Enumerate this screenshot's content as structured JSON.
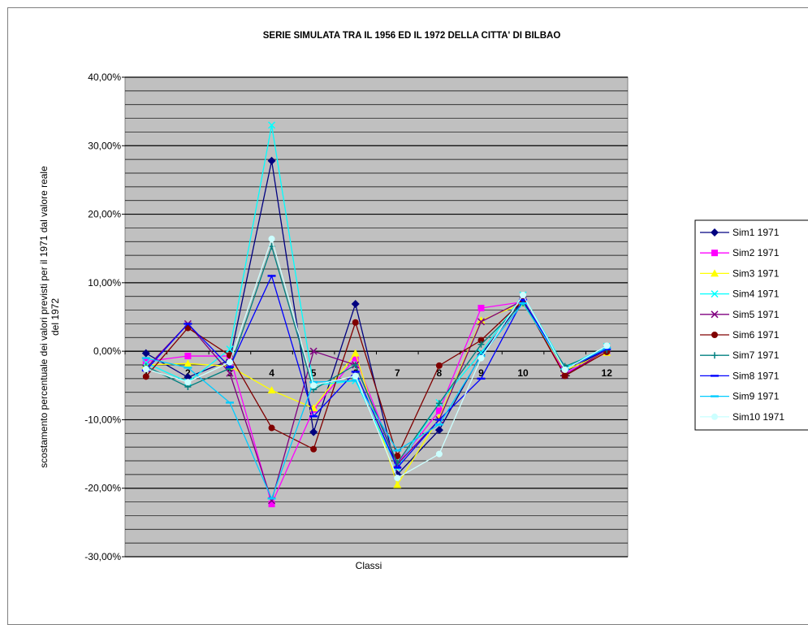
{
  "chart_data": {
    "type": "line",
    "title": "SERIE SIMULATA TRA IL 1956 ED IL 1972 DELLA CITTA' DI BILBAO",
    "xlabel": "Classi",
    "ylabel": "scostamento percentuale dei valori previsti per il 1971 dal valore reale del 1972",
    "ylim": [
      -30,
      40
    ],
    "ytick_step": 10,
    "ytick_labels": [
      "40,00%",
      "30,00%",
      "20,00%",
      "10,00%",
      "0,00%",
      "-10,00%",
      "-20,00%",
      "-30,00%"
    ],
    "categories": [
      "1",
      "2",
      "3",
      "4",
      "5",
      "6",
      "7",
      "8",
      "9",
      "10",
      "11",
      "12"
    ],
    "grid": true,
    "legend_position": "right",
    "plot_background": "#c0c0c0",
    "series": [
      {
        "name": "Sim1 1971",
        "color": "#000080",
        "marker": "diamond",
        "values": [
          -0.3,
          -3.8,
          -1.3,
          27.8,
          -11.8,
          6.9,
          -18.0,
          -11.5,
          -0.5,
          7.5,
          -3.0,
          0.3
        ]
      },
      {
        "name": "Sim2 1971",
        "color": "#ff00ff",
        "marker": "square",
        "values": [
          -1.5,
          -0.7,
          -0.7,
          -22.3,
          -8.5,
          -1.0,
          -16.5,
          -8.7,
          6.3,
          7.2,
          -3.2,
          -0.2
        ]
      },
      {
        "name": "Sim3 1971",
        "color": "#ffff00",
        "marker": "triangle",
        "values": [
          -2.0,
          -1.8,
          -2.2,
          -5.7,
          -8.3,
          -0.3,
          -19.5,
          -9.7,
          4.5,
          7.0,
          -2.8,
          -0.2
        ]
      },
      {
        "name": "Sim4 1971",
        "color": "#00ffff",
        "marker": "x",
        "values": [
          -1.7,
          -4.5,
          0.3,
          33.0,
          -5.0,
          -4.3,
          -17.0,
          -7.5,
          -0.2,
          8.2,
          -2.4,
          0.7
        ]
      },
      {
        "name": "Sim5 1971",
        "color": "#800080",
        "marker": "x",
        "values": [
          -2.5,
          4.0,
          -3.2,
          -21.8,
          0.0,
          -2.0,
          -16.5,
          -10.0,
          4.3,
          7.4,
          -3.5,
          0.2
        ]
      },
      {
        "name": "Sim6 1971",
        "color": "#800000",
        "marker": "circle",
        "values": [
          -3.7,
          3.4,
          -0.6,
          -11.2,
          -14.3,
          4.2,
          -15.3,
          -2.1,
          1.6,
          7.4,
          -3.6,
          -0.1
        ]
      },
      {
        "name": "Sim7 1971",
        "color": "#008080",
        "marker": "plus",
        "values": [
          -2.2,
          -5.2,
          -2.5,
          15.3,
          -5.6,
          -2.0,
          -16.3,
          -7.6,
          1.0,
          7.0,
          -2.2,
          0.2
        ]
      },
      {
        "name": "Sim8 1971",
        "color": "#0000ff",
        "marker": "dash",
        "values": [
          -2.8,
          4.0,
          -2.3,
          11.0,
          -9.5,
          -3.0,
          -17.0,
          -10.0,
          -4.0,
          7.5,
          -2.6,
          0.3
        ]
      },
      {
        "name": "Sim9 1971",
        "color": "#00ccff",
        "marker": "dash",
        "values": [
          -1.0,
          -2.4,
          -7.5,
          -21.5,
          -4.5,
          -4.3,
          -14.5,
          -10.7,
          -0.7,
          7.0,
          -2.6,
          0.5
        ]
      },
      {
        "name": "Sim10 1971",
        "color": "#ccffff",
        "marker": "circle",
        "values": [
          -2.6,
          -4.5,
          -1.6,
          16.4,
          -5.0,
          -3.6,
          -18.5,
          -15.0,
          -1.0,
          8.2,
          -2.7,
          0.8
        ]
      }
    ]
  }
}
